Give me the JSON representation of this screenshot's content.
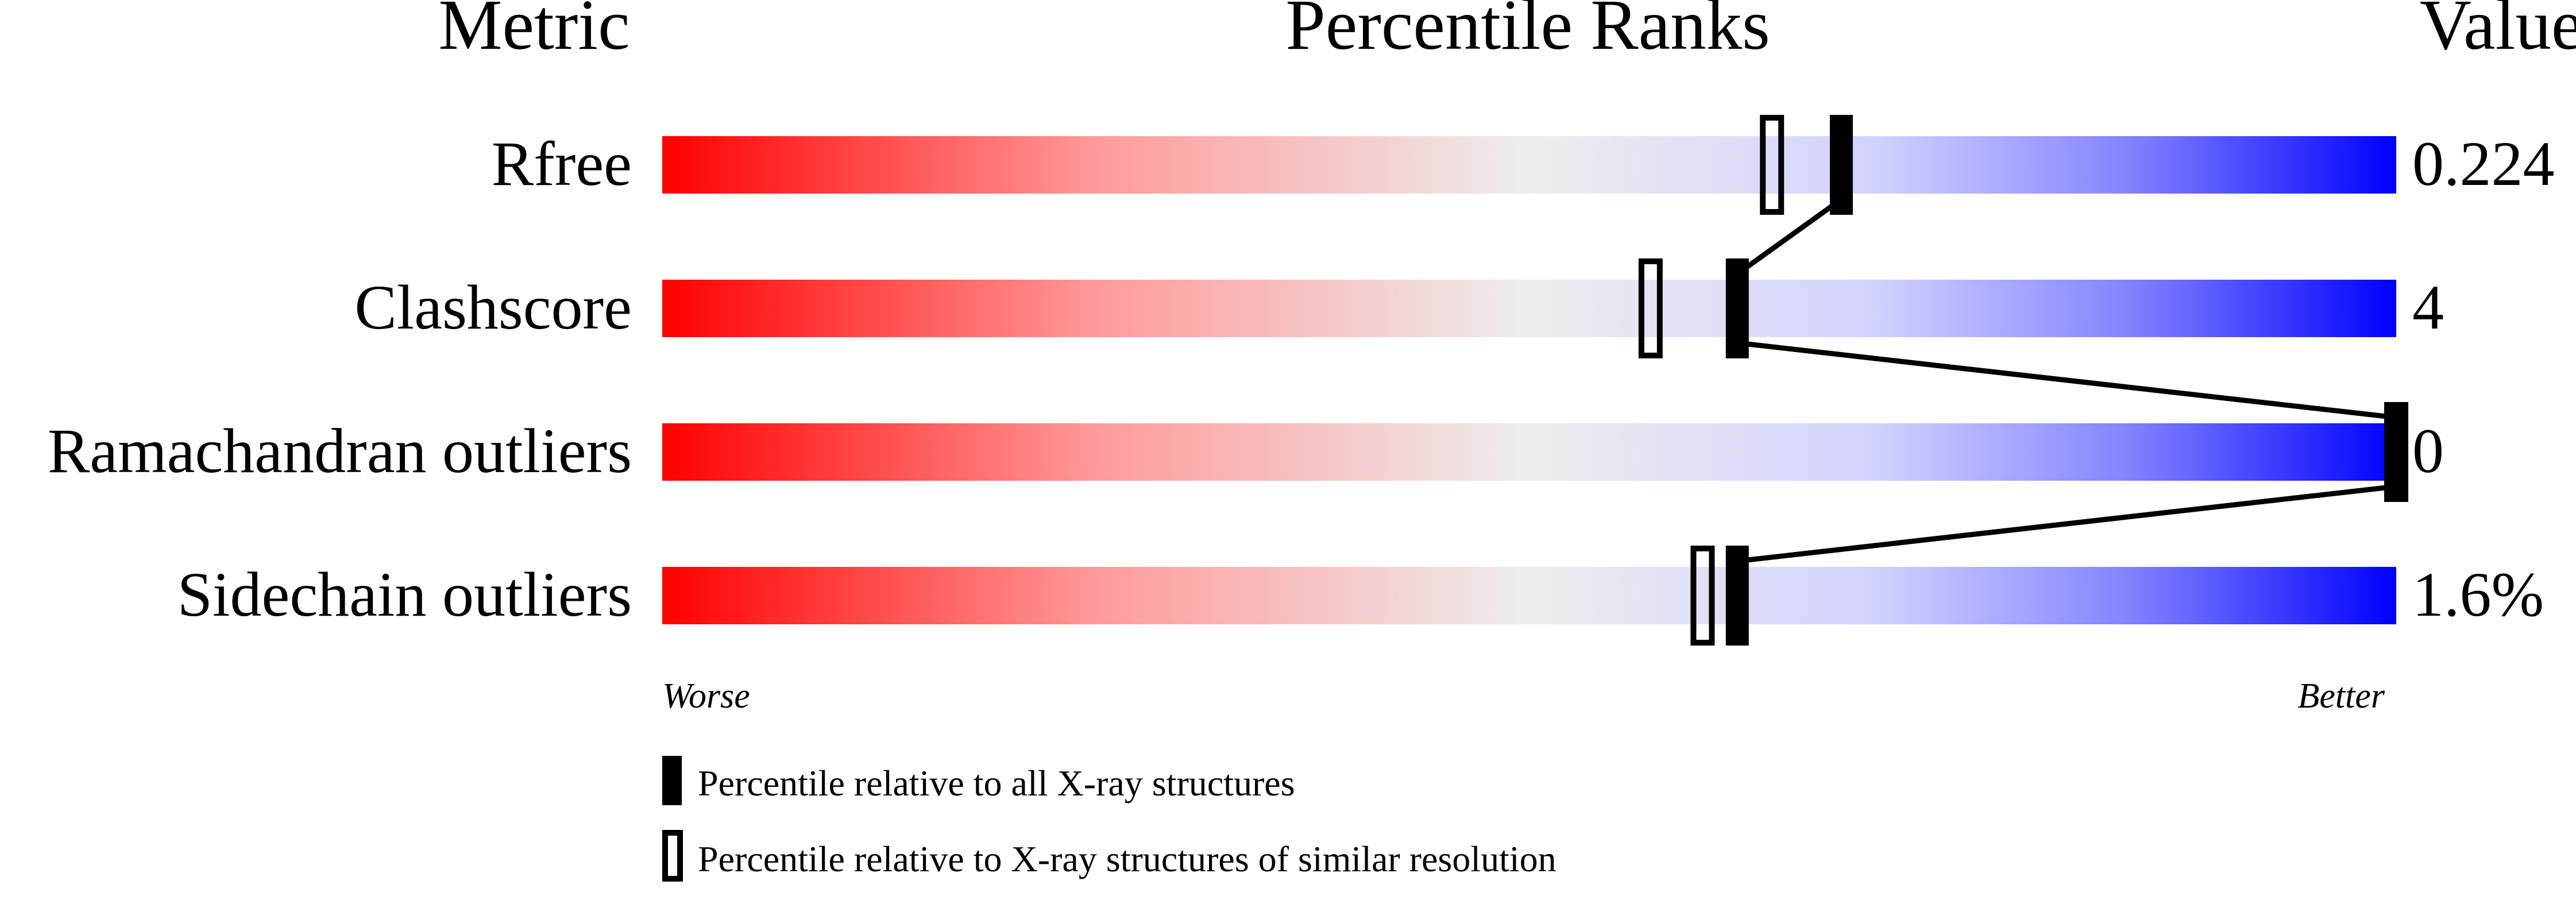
{
  "chart_data": {
    "type": "percentile-slider",
    "headers": {
      "metric": "Metric",
      "ranks": "Percentile Ranks",
      "value": "Value"
    },
    "xlim": [
      0,
      100
    ],
    "axis_labels": {
      "left": "Worse",
      "right": "Better"
    },
    "colors": {
      "worse": "#ff0000",
      "middle": "#eeeeee",
      "better": "#0000ff",
      "marker": "#000000"
    },
    "metrics": [
      {
        "name": "Rfree",
        "value": "0.224",
        "percentile_all": 68,
        "percentile_similar": 64
      },
      {
        "name": "Clashscore",
        "value": "4",
        "percentile_all": 62,
        "percentile_similar": 57
      },
      {
        "name": "Ramachandran outliers",
        "value": "0",
        "percentile_all": 100,
        "percentile_similar": 100
      },
      {
        "name": "Sidechain outliers",
        "value": "1.6%",
        "percentile_all": 62,
        "percentile_similar": 60
      }
    ],
    "legend": [
      {
        "marker": "filled",
        "label": "Percentile relative to all X-ray structures"
      },
      {
        "marker": "hollow",
        "label": "Percentile relative to X-ray structures of similar resolution"
      }
    ]
  }
}
